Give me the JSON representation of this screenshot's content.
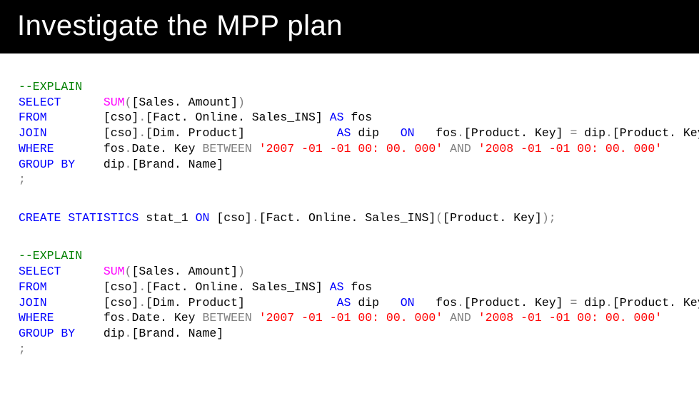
{
  "title": "Investigate the MPP plan",
  "colors": {
    "title_bg": "#000000",
    "title_fg": "#ffffff",
    "page_bg": "#ffffff",
    "keyword": "#0000ff",
    "comment": "#008000",
    "function": "#ff00ff",
    "operator": "#808080",
    "string": "#ff0000",
    "identifier": "#000000"
  },
  "typography": {
    "title_font": "Segoe UI",
    "title_size_pt": 30,
    "title_weight": 300,
    "code_font": "Consolas",
    "code_size_pt": 12.5,
    "line_height": 1.32
  },
  "sql": {
    "block1": {
      "comment": "--EXPLAIN",
      "select_kw": "SELECT",
      "sum_fn": "SUM",
      "sum_open": "(",
      "sum_arg": "[Sales. Amount]",
      "sum_close": ")",
      "from_kw": "FROM",
      "from_tbl": "[cso]",
      "dot1": ".",
      "from_tbl2": "[Fact. Online. Sales_INS]",
      "as1": "AS",
      "alias1": "fos",
      "join_kw": "JOIN",
      "join_tbl": "[cso]",
      "dot2": ".",
      "join_tbl2": "[Dim. Product]",
      "as2": "AS",
      "alias2": "dip",
      "on_kw": "ON",
      "on_lhs_a": "fos",
      "on_lhs_dot": ".",
      "on_lhs_b": "[Product. Key]",
      "eq": "=",
      "on_rhs_a": "dip",
      "on_rhs_dot": ".",
      "on_rhs_b": "[Product. Key]",
      "where_kw": "WHERE",
      "where_lhs_a": "fos",
      "where_lhs_dot": ".",
      "where_lhs_b": "Date. Key",
      "between_kw": "BETWEEN",
      "date1": "'2007 -01 -01 00: 00. 000'",
      "and_kw": "AND",
      "date2": "'2008 -01 -01 00: 00. 000'",
      "groupby_kw": "GROUP BY",
      "gb_a": "dip",
      "gb_dot": ".",
      "gb_b": "[Brand. Name]",
      "semi": ";"
    },
    "stats": {
      "create_kw": "CREATE",
      "statistics_kw": "STATISTICS",
      "name": "stat_1",
      "on_kw": "ON",
      "schema": "[cso]",
      "dot": ".",
      "table": "[Fact. Online. Sales_INS]",
      "open": "(",
      "col": "[Product. Key]",
      "close": ");"
    },
    "block2": {
      "comment": "--EXPLAIN",
      "select_kw": "SELECT",
      "sum_fn": "SUM",
      "sum_open": "(",
      "sum_arg": "[Sales. Amount]",
      "sum_close": ")",
      "from_kw": "FROM",
      "from_tbl": "[cso]",
      "dot1": ".",
      "from_tbl2": "[Fact. Online. Sales_INS]",
      "as1": "AS",
      "alias1": "fos",
      "join_kw": "JOIN",
      "join_tbl": "[cso]",
      "dot2": ".",
      "join_tbl2": "[Dim. Product]",
      "as2": "AS",
      "alias2": "dip",
      "on_kw": "ON",
      "on_lhs_a": "fos",
      "on_lhs_dot": ".",
      "on_lhs_b": "[Product. Key]",
      "eq": "=",
      "on_rhs_a": "dip",
      "on_rhs_dot": ".",
      "on_rhs_b": "[Product. Key]",
      "where_kw": "WHERE",
      "where_lhs_a": "fos",
      "where_lhs_dot": ".",
      "where_lhs_b": "Date. Key",
      "between_kw": "BETWEEN",
      "date1": "'2007 -01 -01 00: 00. 000'",
      "and_kw": "AND",
      "date2": "'2008 -01 -01 00: 00. 000'",
      "groupby_kw": "GROUP BY",
      "gb_a": "dip",
      "gb_dot": ".",
      "gb_b": "[Brand. Name]",
      "semi": ";"
    }
  }
}
